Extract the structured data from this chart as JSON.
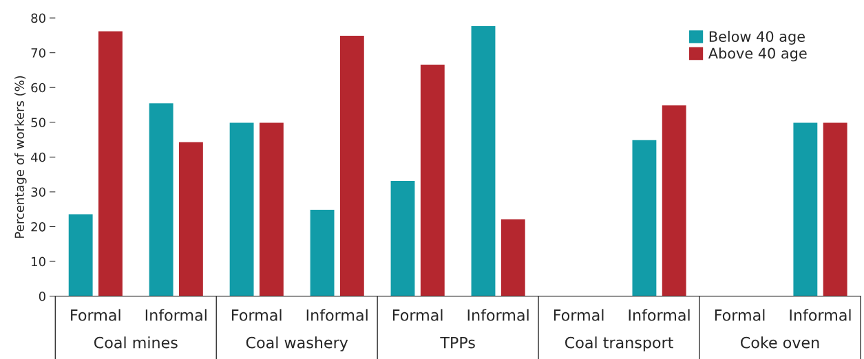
{
  "chart_data": {
    "type": "bar",
    "ylabel": "Percentage of workers (%)",
    "categories": [
      "Formal",
      "Informal",
      "Formal",
      "Informal",
      "Formal",
      "Informal",
      "Formal",
      "Informal",
      "Formal",
      "Informal"
    ],
    "annotations": [
      "Coal mines",
      "Coal washery",
      "TPPs",
      "Coal transport",
      "Coke oven"
    ],
    "series": [
      {
        "name": "Below 40 age",
        "color": "#129ca8",
        "values": [
          23.7,
          55.6,
          50,
          25,
          33.3,
          77.8,
          null,
          45,
          null,
          50
        ]
      },
      {
        "name": "Above 40 age",
        "color": "#b5272f",
        "values": [
          76.3,
          44.4,
          50,
          75,
          66.7,
          22.2,
          null,
          55,
          null,
          50
        ]
      }
    ],
    "ylim": [
      0,
      80
    ],
    "yticks": [
      0,
      10,
      20,
      30,
      40,
      50,
      60,
      70,
      80
    ],
    "grid": false,
    "legend": "top right"
  }
}
